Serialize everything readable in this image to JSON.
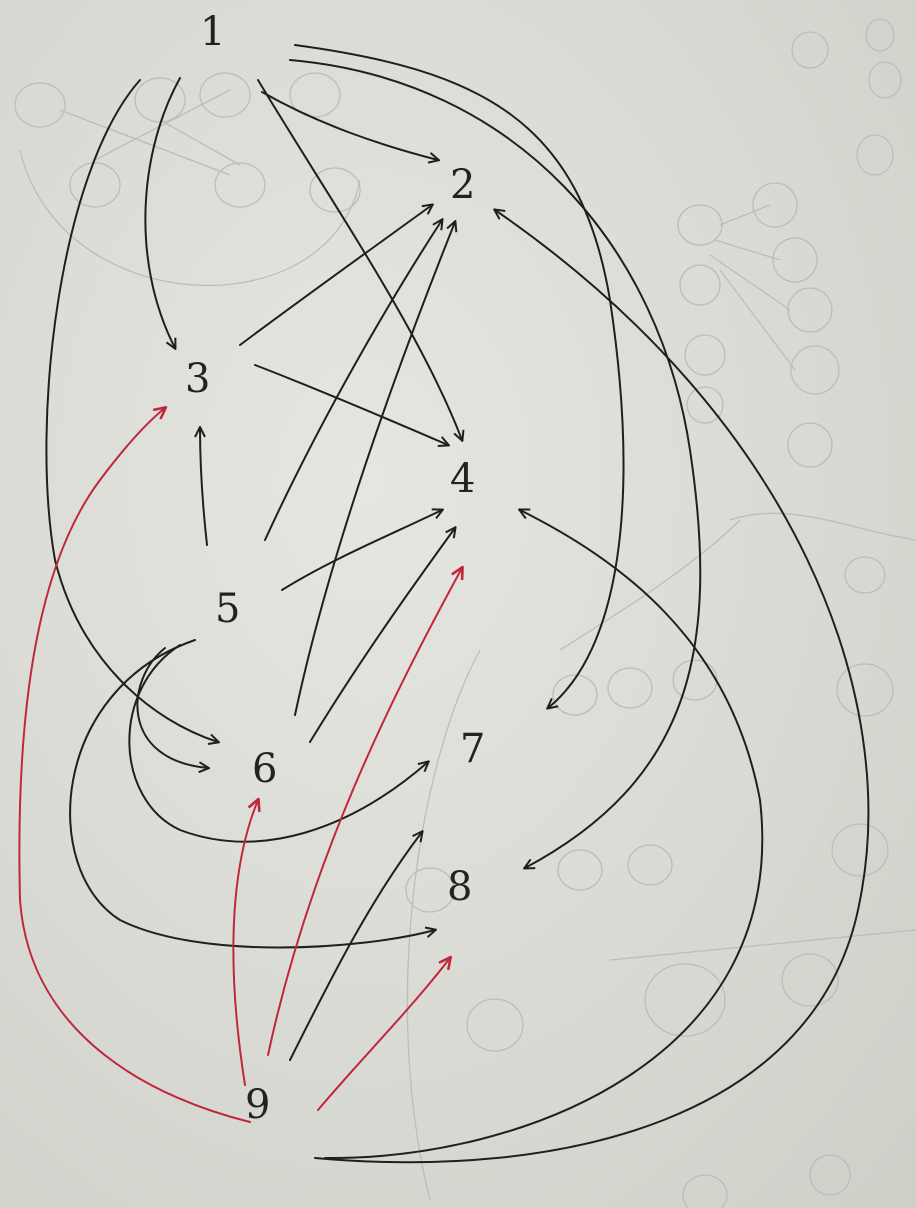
{
  "colors": {
    "ink": "#1f1f1f",
    "red_ink": "#c0283a",
    "ghost_ink": "#b9bcc4",
    "paper": "#dcdcd6"
  },
  "nodes": [
    {
      "id": "n1",
      "label": "1"
    },
    {
      "id": "n2",
      "label": "2"
    },
    {
      "id": "n3",
      "label": "3"
    },
    {
      "id": "n4",
      "label": "4"
    },
    {
      "id": "n5",
      "label": "5"
    },
    {
      "id": "n6",
      "label": "6"
    },
    {
      "id": "n7",
      "label": "7"
    },
    {
      "id": "n8",
      "label": "8"
    },
    {
      "id": "n9",
      "label": "9"
    }
  ],
  "edges": [
    {
      "from": "1",
      "to": "2",
      "color": "black"
    },
    {
      "from": "1",
      "to": "3",
      "color": "black"
    },
    {
      "from": "1",
      "to": "4",
      "color": "black"
    },
    {
      "from": "1",
      "to": "6",
      "color": "black"
    },
    {
      "from": "1",
      "to": "7",
      "color": "black"
    },
    {
      "from": "1",
      "to": "8",
      "color": "black"
    },
    {
      "from": "3",
      "to": "2",
      "color": "black"
    },
    {
      "from": "3",
      "to": "4",
      "color": "black"
    },
    {
      "from": "5",
      "to": "2",
      "color": "black"
    },
    {
      "from": "5",
      "to": "3",
      "color": "black"
    },
    {
      "from": "5",
      "to": "4",
      "color": "black"
    },
    {
      "from": "5",
      "to": "6",
      "color": "black"
    },
    {
      "from": "5",
      "to": "7",
      "color": "black"
    },
    {
      "from": "5",
      "to": "8",
      "color": "black"
    },
    {
      "from": "6",
      "to": "2",
      "color": "black"
    },
    {
      "from": "6",
      "to": "4",
      "color": "black"
    },
    {
      "from": "9",
      "to": "2",
      "color": "black"
    },
    {
      "from": "9",
      "to": "4",
      "color": "black"
    },
    {
      "from": "9",
      "to": "8",
      "color": "black"
    },
    {
      "from": "9",
      "to": "3",
      "color": "red"
    },
    {
      "from": "9",
      "to": "4",
      "color": "red"
    },
    {
      "from": "9",
      "to": "6",
      "color": "red"
    },
    {
      "from": "9",
      "to": "8",
      "color": "red"
    }
  ]
}
